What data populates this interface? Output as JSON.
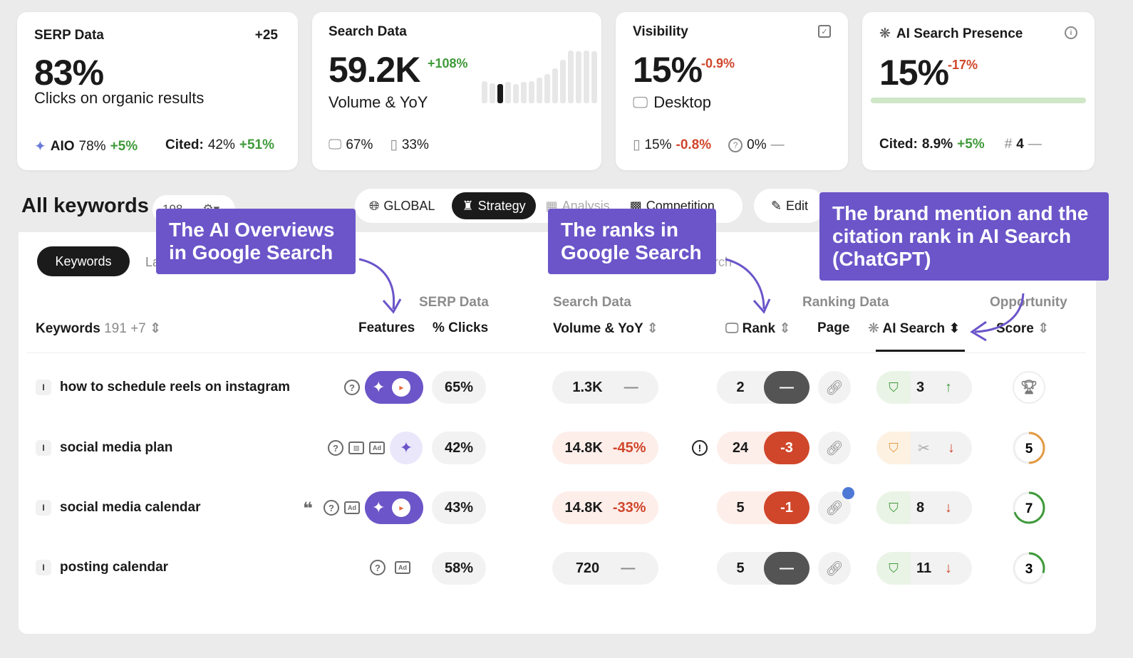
{
  "cards": {
    "serp": {
      "title": "SERP Data",
      "count": "+25",
      "value": "83%",
      "subtitle": "Clicks on organic results",
      "aio_label": "AIO",
      "aio_value": "78%",
      "aio_delta": "+5%",
      "cited_label": "Cited:",
      "cited_value": "42%",
      "cited_delta": "+51%"
    },
    "search": {
      "title": "Search Data",
      "value": "59.2K",
      "delta": "+108%",
      "subtitle": "Volume & YoY",
      "desktop": "67%",
      "mobile": "33%",
      "spark": [
        0.42,
        0.38,
        0.36,
        0.4,
        0.36,
        0.4,
        0.42,
        0.48,
        0.56,
        0.66,
        0.82,
        1.0,
        0.98,
        1.0,
        0.98
      ],
      "spark_active": 2
    },
    "visibility": {
      "title": "Visibility",
      "value": "15%",
      "delta": "-0.9%",
      "subtitle": "Desktop",
      "mobile_value": "15%",
      "mobile_delta": "-0.8%",
      "unknown_value": "0%",
      "unknown_delta": "—"
    },
    "ai": {
      "title": "AI Search Presence",
      "value": "15%",
      "delta": "-17%",
      "progress": 1.0,
      "cited_label": "Cited:",
      "cited_value": "8.9%",
      "cited_delta": "+5%",
      "hash": "#",
      "rank": "4",
      "rank_delta": "—"
    }
  },
  "toolbar": {
    "title": "All keywords",
    "count": "198",
    "tabs": [
      {
        "label": "GLOBAL",
        "icon": "globe-icon"
      },
      {
        "label": "Strategy",
        "icon": "chess-icon"
      },
      {
        "label": "Analysis",
        "icon": "chart-icon"
      },
      {
        "label": "Competition",
        "icon": "grid-icon"
      }
    ],
    "edit": "Edit"
  },
  "subtabs": {
    "active": "Keywords",
    "next": "La",
    "search_fragment": "rch"
  },
  "headers": {
    "keywords": "Keywords",
    "kw_count": "191",
    "kw_new": "+7",
    "serp_group": "SERP Data",
    "features": "Features",
    "clicks": "% Clicks",
    "search_group": "Search Data",
    "volume": "Volume & YoY",
    "rank": "Rank",
    "ranking_group": "Ranking Data",
    "page": "Page",
    "ai_search": "AI Search",
    "opp_group": "Opportunity",
    "score": "Score"
  },
  "rows": [
    {
      "keyword": "how to schedule reels on instagram",
      "clicks": "65%",
      "volume": "1.3K",
      "volume_delta": "—",
      "rank": "2",
      "rank_delta": "—",
      "ai_rank": "3",
      "ai_dir": "↑",
      "score": "",
      "score_level": 0
    },
    {
      "keyword": "social media plan",
      "clicks": "42%",
      "volume": "14.8K",
      "volume_delta": "-45%",
      "rank": "24",
      "rank_delta": "-3",
      "ai_rank": "",
      "ai_dir": "↓",
      "score": "5",
      "score_level": 0.5
    },
    {
      "keyword": "social media calendar",
      "clicks": "43%",
      "volume": "14.8K",
      "volume_delta": "-33%",
      "rank": "5",
      "rank_delta": "-1",
      "ai_rank": "8",
      "ai_dir": "↓",
      "score": "7",
      "score_level": 0.7
    },
    {
      "keyword": "posting calendar",
      "clicks": "58%",
      "volume": "720",
      "volume_delta": "—",
      "rank": "5",
      "rank_delta": "—",
      "ai_rank": "11",
      "ai_dir": "↓",
      "score": "3",
      "score_level": 0.3
    }
  ],
  "callouts": {
    "aio": "The AI Overviews in Google Search",
    "ranks": "The ranks in Google Search",
    "brand": "The brand mention and the citation rank in AI Search (ChatGPT)"
  },
  "colors": {
    "accent": "#6b55c9",
    "green": "#3f9a3a",
    "red": "#d0462b",
    "orange": "#e39a44"
  }
}
